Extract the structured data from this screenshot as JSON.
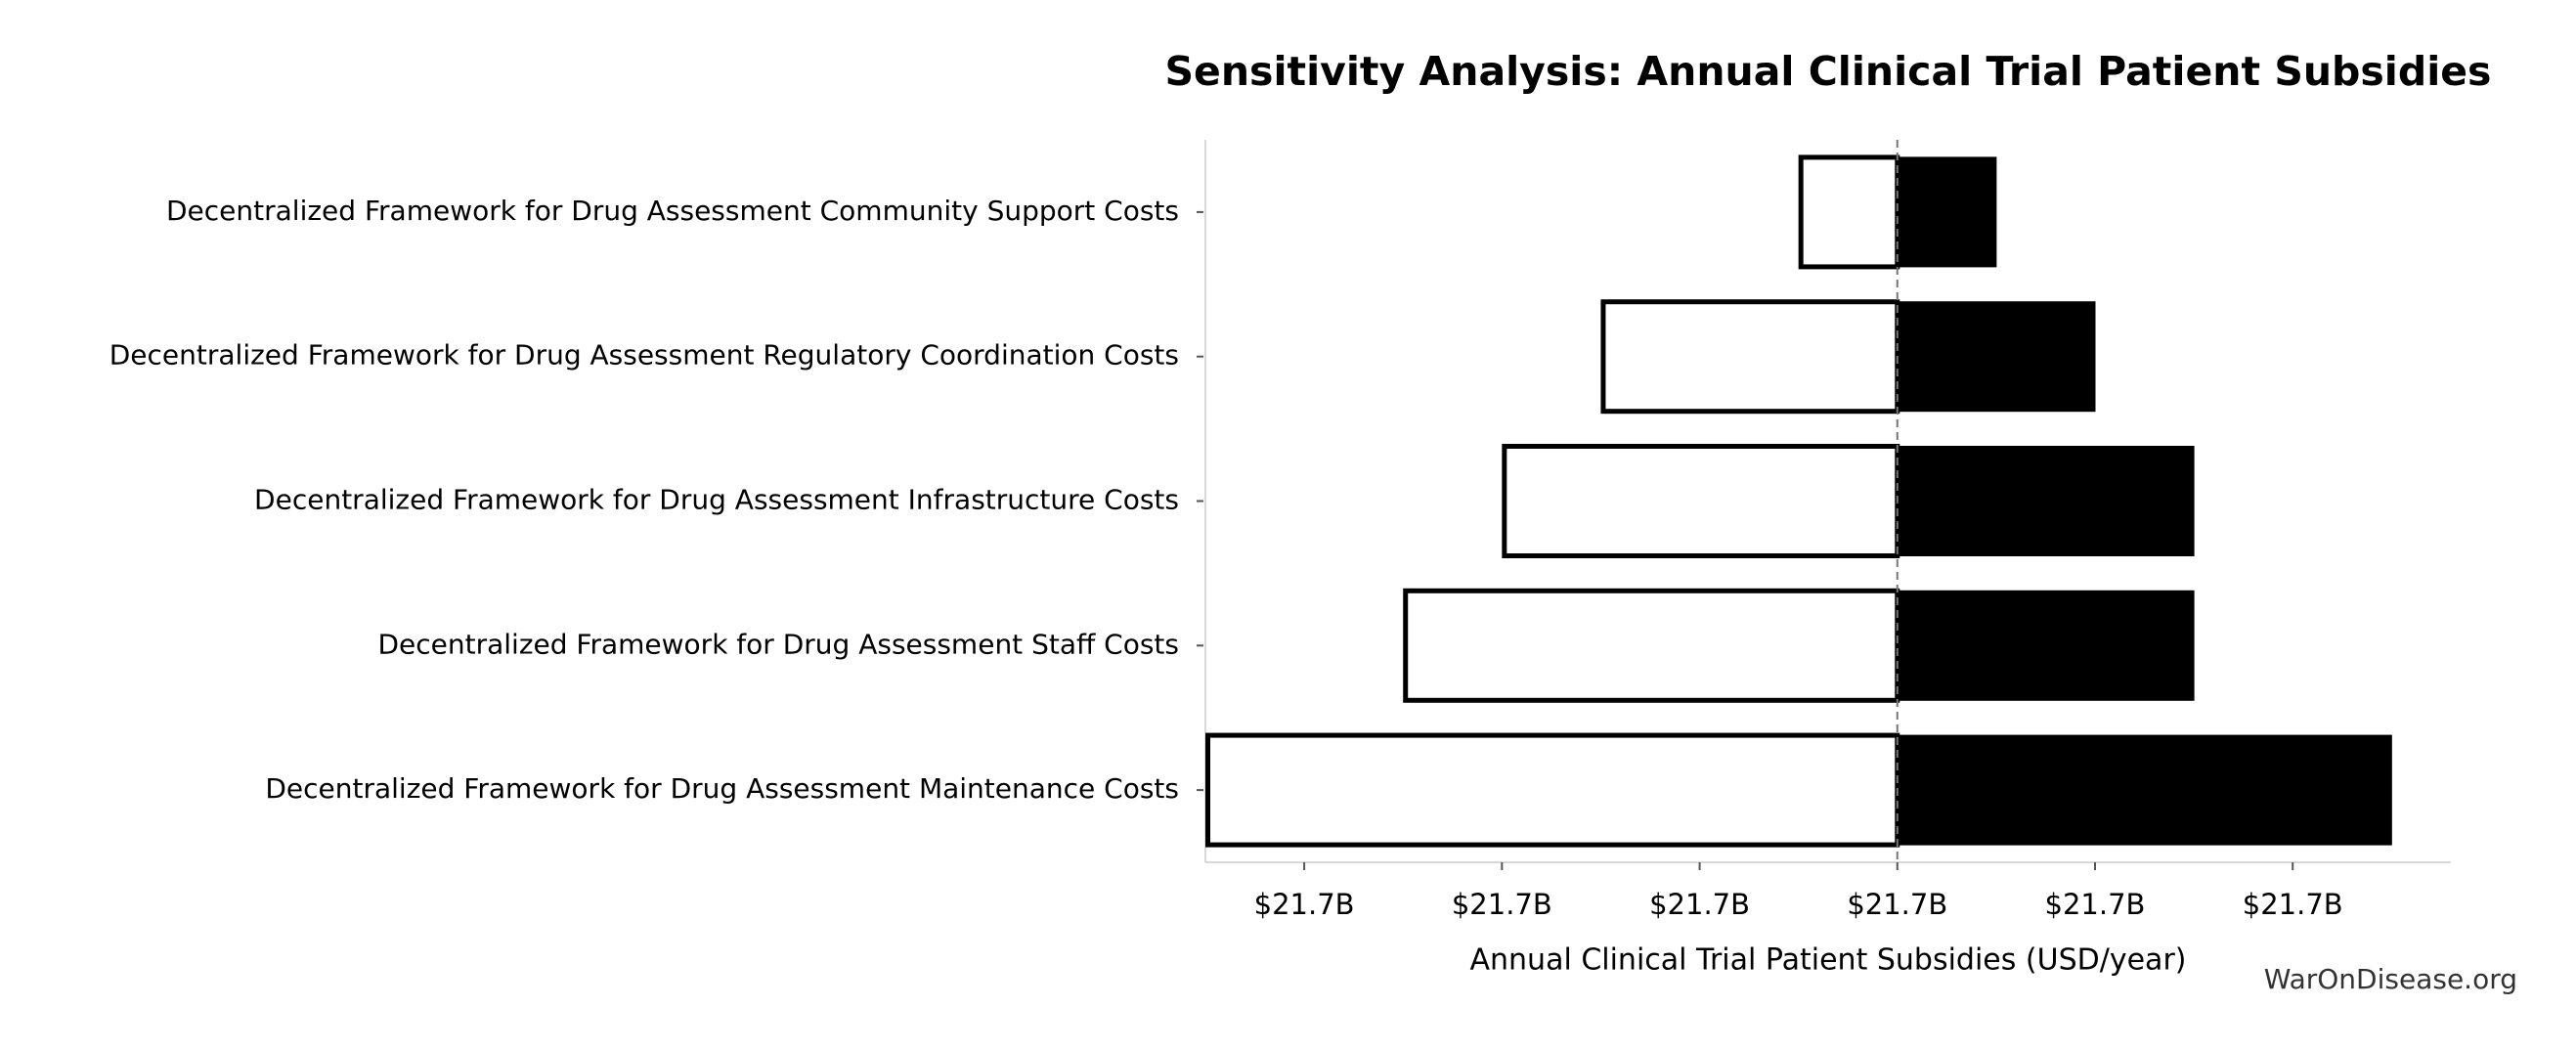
{
  "chart_data": {
    "type": "tornado",
    "title": "Sensitivity Analysis: Annual Clinical Trial Patient Subsidies",
    "x_label": "Annual Clinical Trial Patient Subsidies (USD/year)",
    "source": "WarOnDisease.org",
    "categories": [
      "Decentralized Framework for Drug Assessment Community Support Costs",
      "Decentralized Framework for Drug Assessment Regulatory Coordination Costs",
      "Decentralized Framework for Drug Assessment Infrastructure Costs",
      "Decentralized Framework for Drug Assessment Staff Costs",
      "Decentralized Framework for Drug Assessment Maintenance Costs"
    ],
    "baseline": 21700000000,
    "series": [
      {
        "color": "#ffffff",
        "values": [
          21699500000,
          21698500000,
          21698000000,
          21697500000,
          21696500000
        ]
      },
      {
        "color": "#000000",
        "values": [
          21700500000,
          21701000000,
          21701500000,
          21701500000,
          21702500000
        ]
      }
    ],
    "xlim": [
      21696500000,
      21702800000
    ],
    "xticks": [
      {
        "value": 21697000000,
        "label": "$21.7B"
      },
      {
        "value": 21698000000,
        "label": "$21.7B"
      },
      {
        "value": 21699000000,
        "label": "$21.7B"
      },
      {
        "value": 21700000000,
        "label": "$21.7B"
      },
      {
        "value": 21701000000,
        "label": "$21.7B"
      },
      {
        "value": 21702000000,
        "label": "$21.7B"
      }
    ]
  }
}
